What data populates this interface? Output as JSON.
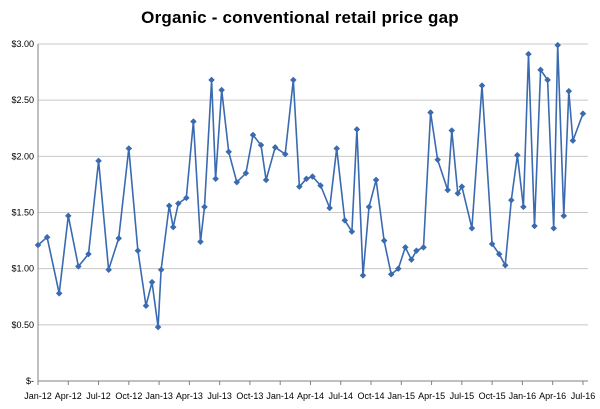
{
  "chart_data": {
    "type": "line",
    "title": "Organic - conventional  retail price gap",
    "xlabel": "",
    "ylabel": "",
    "ylim": [
      0,
      3
    ],
    "y_ticks": [
      {
        "value": 0,
        "label": "$-"
      },
      {
        "value": 0.5,
        "label": "$0.50"
      },
      {
        "value": 1.0,
        "label": "$1.00"
      },
      {
        "value": 1.5,
        "label": "$1.50"
      },
      {
        "value": 2.0,
        "label": "$2.00"
      },
      {
        "value": 2.5,
        "label": "$2.50"
      },
      {
        "value": 3.0,
        "label": "$3.00"
      }
    ],
    "x_ticks": [
      {
        "x": 0,
        "label": "Jan-12"
      },
      {
        "x": 3,
        "label": "Apr-12"
      },
      {
        "x": 6,
        "label": "Jul-12"
      },
      {
        "x": 9,
        "label": "Oct-12"
      },
      {
        "x": 12,
        "label": "Jan-13"
      },
      {
        "x": 15,
        "label": "Apr-13"
      },
      {
        "x": 18,
        "label": "Jul-13"
      },
      {
        "x": 21,
        "label": "Oct-13"
      },
      {
        "x": 24,
        "label": "Jan-14"
      },
      {
        "x": 27,
        "label": "Apr-14"
      },
      {
        "x": 30,
        "label": "Jul-14"
      },
      {
        "x": 33,
        "label": "Oct-14"
      },
      {
        "x": 36,
        "label": "Jan-15"
      },
      {
        "x": 39,
        "label": "Apr-15"
      },
      {
        "x": 42,
        "label": "Jul-15"
      },
      {
        "x": 45,
        "label": "Oct-15"
      },
      {
        "x": 48,
        "label": "Jan-16"
      },
      {
        "x": 51,
        "label": "Apr-16"
      },
      {
        "x": 54,
        "label": "Jul-16"
      }
    ],
    "grid": {
      "horizontal": true,
      "vertical": false
    },
    "colors": {
      "line": "#3a6ab0",
      "marker": "#3a6ab0",
      "grid": "#c8c8c8",
      "axis": "#808080"
    },
    "series": [
      {
        "name": "",
        "x": [
          0,
          0.9,
          2.1,
          3.0,
          4.0,
          5.0,
          6.0,
          7.0,
          8.0,
          9.0,
          9.9,
          10.7,
          11.3,
          11.9,
          12.2,
          13.0,
          13.4,
          13.9,
          14.7,
          15.4,
          16.1,
          16.5,
          17.2,
          17.6,
          18.2,
          18.9,
          19.7,
          20.6,
          21.3,
          22.1,
          22.6,
          23.5,
          24.5,
          25.3,
          25.9,
          26.6,
          27.2,
          28.0,
          28.9,
          29.6,
          30.4,
          31.1,
          31.6,
          32.2,
          32.8,
          33.5,
          34.3,
          35.0,
          35.7,
          36.4,
          37.0,
          37.5,
          38.2,
          38.9,
          39.6,
          40.6,
          41.0,
          41.6,
          42.0,
          43.0,
          44.0,
          45.0,
          45.7,
          46.3,
          46.9,
          47.5,
          48.1,
          48.6,
          49.2,
          49.8,
          50.5,
          51.1,
          51.5,
          52.1,
          52.6,
          53.0,
          54.0
        ],
        "values": [
          1.21,
          1.28,
          0.78,
          1.47,
          1.02,
          1.13,
          1.96,
          0.99,
          1.27,
          2.07,
          1.16,
          0.67,
          0.88,
          0.48,
          0.99,
          1.56,
          1.37,
          1.58,
          1.63,
          2.31,
          1.24,
          1.55,
          2.68,
          1.8,
          2.59,
          2.04,
          1.77,
          1.85,
          2.19,
          2.1,
          1.79,
          2.08,
          2.02,
          2.68,
          1.73,
          1.8,
          1.82,
          1.74,
          1.54,
          2.07,
          1.43,
          1.33,
          2.24,
          0.94,
          1.55,
          1.79,
          1.25,
          0.95,
          1.0,
          1.19,
          1.08,
          1.16,
          1.19,
          2.39,
          1.97,
          1.7,
          2.23,
          1.67,
          1.73,
          1.36,
          2.63,
          1.22,
          1.13,
          1.03,
          1.61,
          2.01,
          1.55,
          2.91,
          1.38,
          2.77,
          2.68,
          1.36,
          2.99,
          1.47,
          2.58,
          2.14,
          2.38
        ]
      }
    ]
  }
}
